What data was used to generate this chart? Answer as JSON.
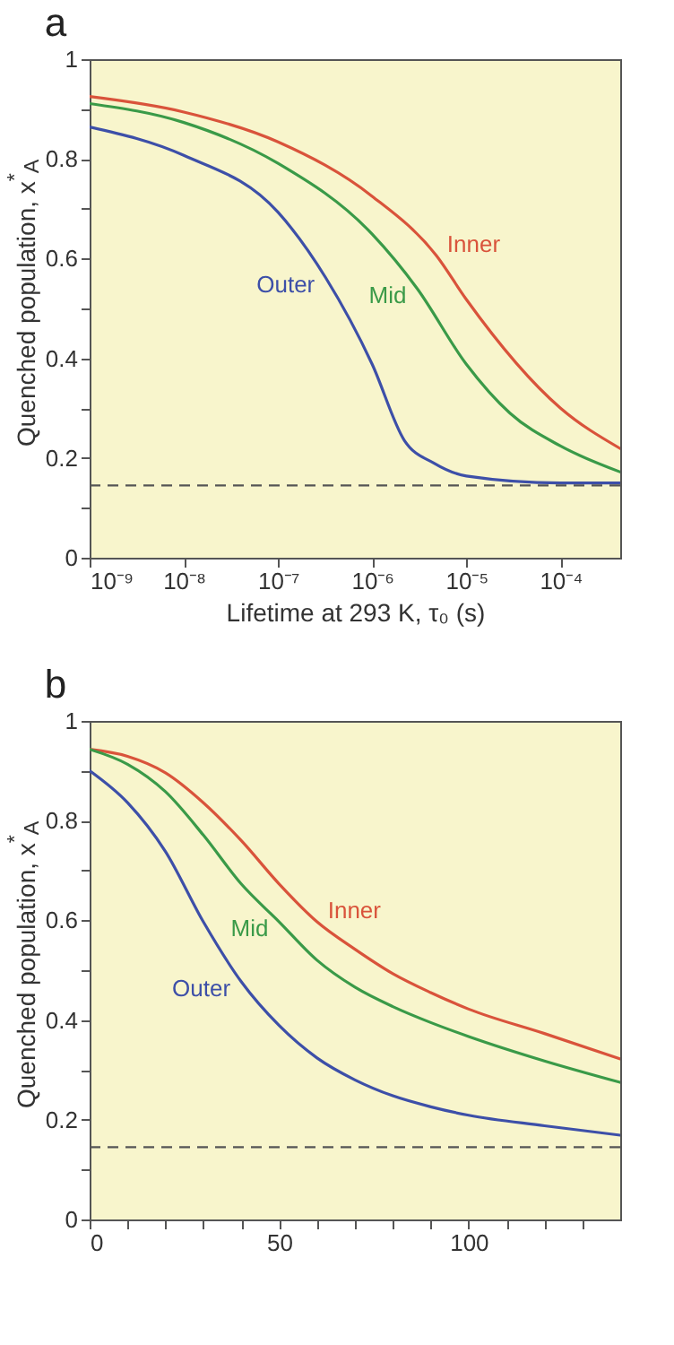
{
  "chart_data": [
    {
      "type": "line",
      "title": "a",
      "xlabel": "Lifetime at 293 K, τ₀ (s)",
      "ylabel": "Quenched population, x$^{*}$$_{A}$",
      "log": "x",
      "xlim": [
        1e-09,
        0.00043
      ],
      "ylim": [
        0,
        1
      ],
      "xticks": [
        {
          "value": 1e-09,
          "label": "10⁻⁹"
        },
        {
          "value": 1e-08,
          "label": "10⁻⁸"
        },
        {
          "value": 1e-07,
          "label": "10⁻⁷"
        },
        {
          "value": 1e-06,
          "label": "10⁻⁶"
        },
        {
          "value": 1e-05,
          "label": "10⁻⁵"
        },
        {
          "value": 0.0001,
          "label": "10⁻⁴"
        }
      ],
      "yticks": [
        0,
        {
          "value": 0.1,
          "label": null
        },
        0.2,
        {
          "value": 0.3,
          "label": null
        },
        0.4,
        {
          "value": 0.5,
          "label": null
        },
        0.6,
        {
          "value": 0.7,
          "label": null
        },
        0.8,
        {
          "value": 0.9,
          "label": null
        },
        1
      ],
      "ref_lines": [
        {
          "axis": "y",
          "value": 0.145,
          "color": "#555555",
          "line_style": "dashed"
        }
      ],
      "series": [
        {
          "name": "Inner",
          "color": "#d9533b",
          "x": [
            1e-09,
            1e-08,
            1e-07,
            1e-06,
            4.8e-06,
            1e-05,
            0.0001,
            0.00043
          ],
          "values": [
            0.925,
            0.894,
            0.834,
            0.725,
            0.606,
            0.518,
            0.3,
            0.219
          ]
        },
        {
          "name": "Mid",
          "color": "#3a9a48",
          "x": [
            1e-09,
            1e-08,
            1e-07,
            1e-06,
            3e-06,
            1e-05,
            2.9e-05,
            0.0001,
            0.00043
          ],
          "values": [
            0.911,
            0.873,
            0.791,
            0.649,
            0.54,
            0.388,
            0.29,
            0.224,
            0.172
          ]
        },
        {
          "name": "Outer",
          "color": "#3d4fa8",
          "x": [
            1e-09,
            1e-08,
            1e-07,
            3.2e-07,
            1e-06,
            2.2e-06,
            4.5e-06,
            1e-05,
            0.0001,
            0.00043
          ],
          "values": [
            0.864,
            0.807,
            0.693,
            0.562,
            0.388,
            0.235,
            0.19,
            0.164,
            0.15,
            0.15
          ]
        }
      ]
    },
    {
      "type": "line",
      "title": "b",
      "ylabel": "Quenched population, x$^{*}$$_{A}$",
      "xlim": [
        0,
        140
      ],
      "ylim": [
        0,
        1
      ],
      "xticks": [
        0,
        {
          "value": 10,
          "label": null
        },
        {
          "value": 20,
          "label": null
        },
        {
          "value": 30,
          "label": null
        },
        {
          "value": 40,
          "label": null
        },
        50,
        {
          "value": 60,
          "label": null
        },
        {
          "value": 70,
          "label": null
        },
        {
          "value": 80,
          "label": null
        },
        {
          "value": 90,
          "label": null
        },
        100,
        {
          "value": 110,
          "label": null
        },
        {
          "value": 120,
          "label": null
        },
        {
          "value": 130,
          "label": null
        }
      ],
      "yticks": [
        0,
        {
          "value": 0.1,
          "label": null
        },
        0.2,
        {
          "value": 0.3,
          "label": null
        },
        0.4,
        {
          "value": 0.5,
          "label": null
        },
        0.6,
        {
          "value": 0.7,
          "label": null
        },
        0.8,
        {
          "value": 0.9,
          "label": null
        },
        1
      ],
      "ref_lines": [
        {
          "axis": "y",
          "value": 0.145,
          "color": "#555555",
          "line_style": "dashed"
        }
      ],
      "series": [
        {
          "name": "Inner",
          "color": "#d9533b",
          "x": [
            0,
            10,
            20,
            30,
            40,
            50,
            60,
            70,
            80,
            90,
            100,
            120,
            140
          ],
          "values": [
            0.943,
            0.929,
            0.896,
            0.836,
            0.76,
            0.673,
            0.597,
            0.542,
            0.493,
            0.455,
            0.422,
            0.373,
            0.322
          ]
        },
        {
          "name": "Mid",
          "color": "#3a9a48",
          "x": [
            0,
            10,
            20,
            30,
            40,
            50,
            60,
            70,
            80,
            90,
            100,
            120,
            140
          ],
          "values": [
            0.943,
            0.913,
            0.858,
            0.771,
            0.673,
            0.597,
            0.52,
            0.466,
            0.427,
            0.395,
            0.367,
            0.318,
            0.275
          ]
        },
        {
          "name": "Outer",
          "color": "#3d4fa8",
          "x": [
            0,
            10,
            20,
            30,
            40,
            50,
            60,
            70,
            80,
            90,
            100,
            120,
            140
          ],
          "values": [
            0.9,
            0.836,
            0.738,
            0.597,
            0.477,
            0.389,
            0.324,
            0.28,
            0.248,
            0.226,
            0.209,
            0.188,
            0.169
          ]
        }
      ]
    }
  ]
}
